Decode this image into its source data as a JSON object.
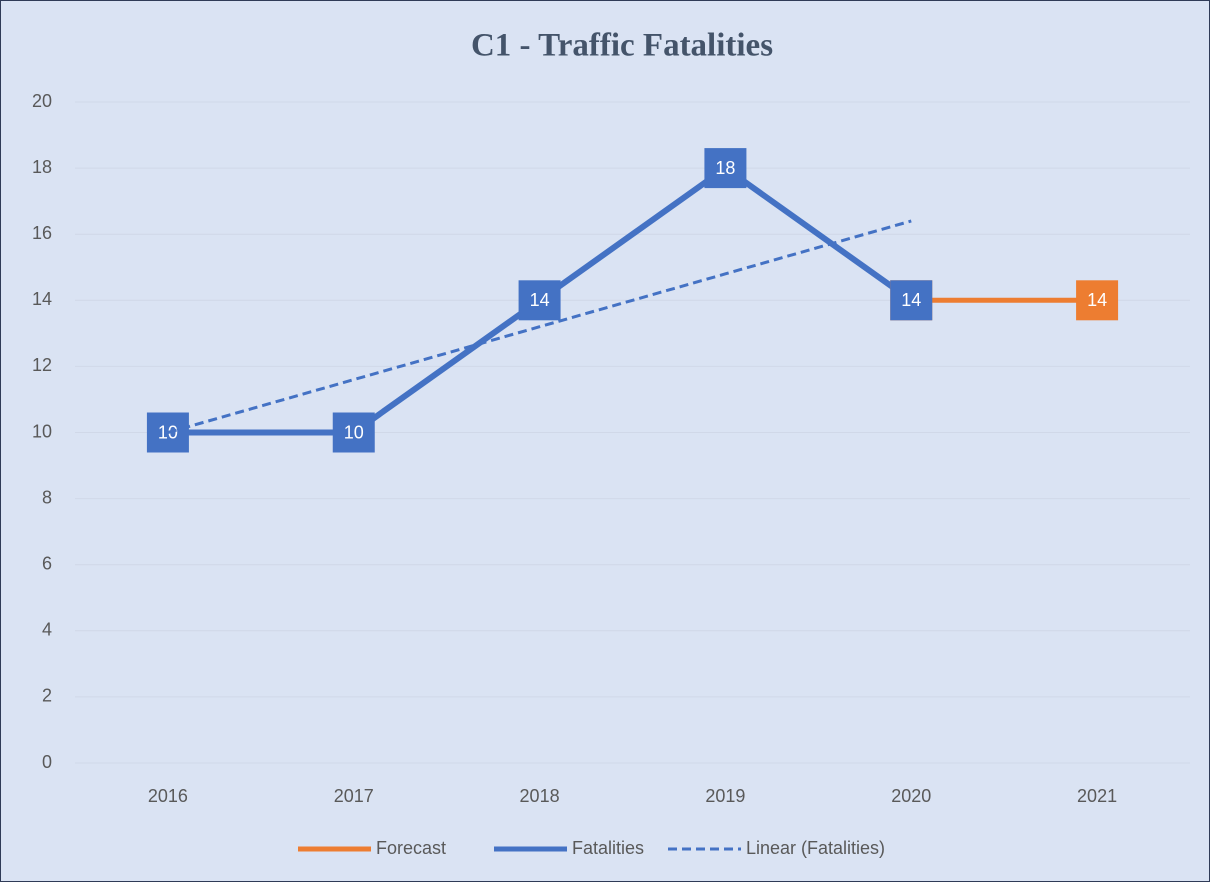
{
  "chart_data": {
    "type": "line",
    "title": "C1 - Traffic Fatalities",
    "categories": [
      "2016",
      "2017",
      "2018",
      "2019",
      "2020",
      "2021"
    ],
    "series": [
      {
        "name": "Forecast",
        "color": "#ed7d31",
        "values": [
          null,
          null,
          null,
          null,
          14,
          14
        ],
        "data_labels": true
      },
      {
        "name": "Fatalities",
        "color": "#4472c4",
        "values": [
          10,
          10,
          14,
          18,
          14,
          null
        ],
        "data_labels": true
      },
      {
        "name": "Linear (Fatalities)",
        "color": "#4472c4",
        "values": [
          10,
          11.6,
          13.2,
          14.8,
          16.4,
          null
        ],
        "dashed": true
      }
    ],
    "ylim": [
      0,
      20
    ],
    "yticks": [
      0,
      2,
      4,
      6,
      8,
      10,
      12,
      14,
      16,
      18,
      20
    ],
    "grid": true,
    "legend": "bottom"
  }
}
